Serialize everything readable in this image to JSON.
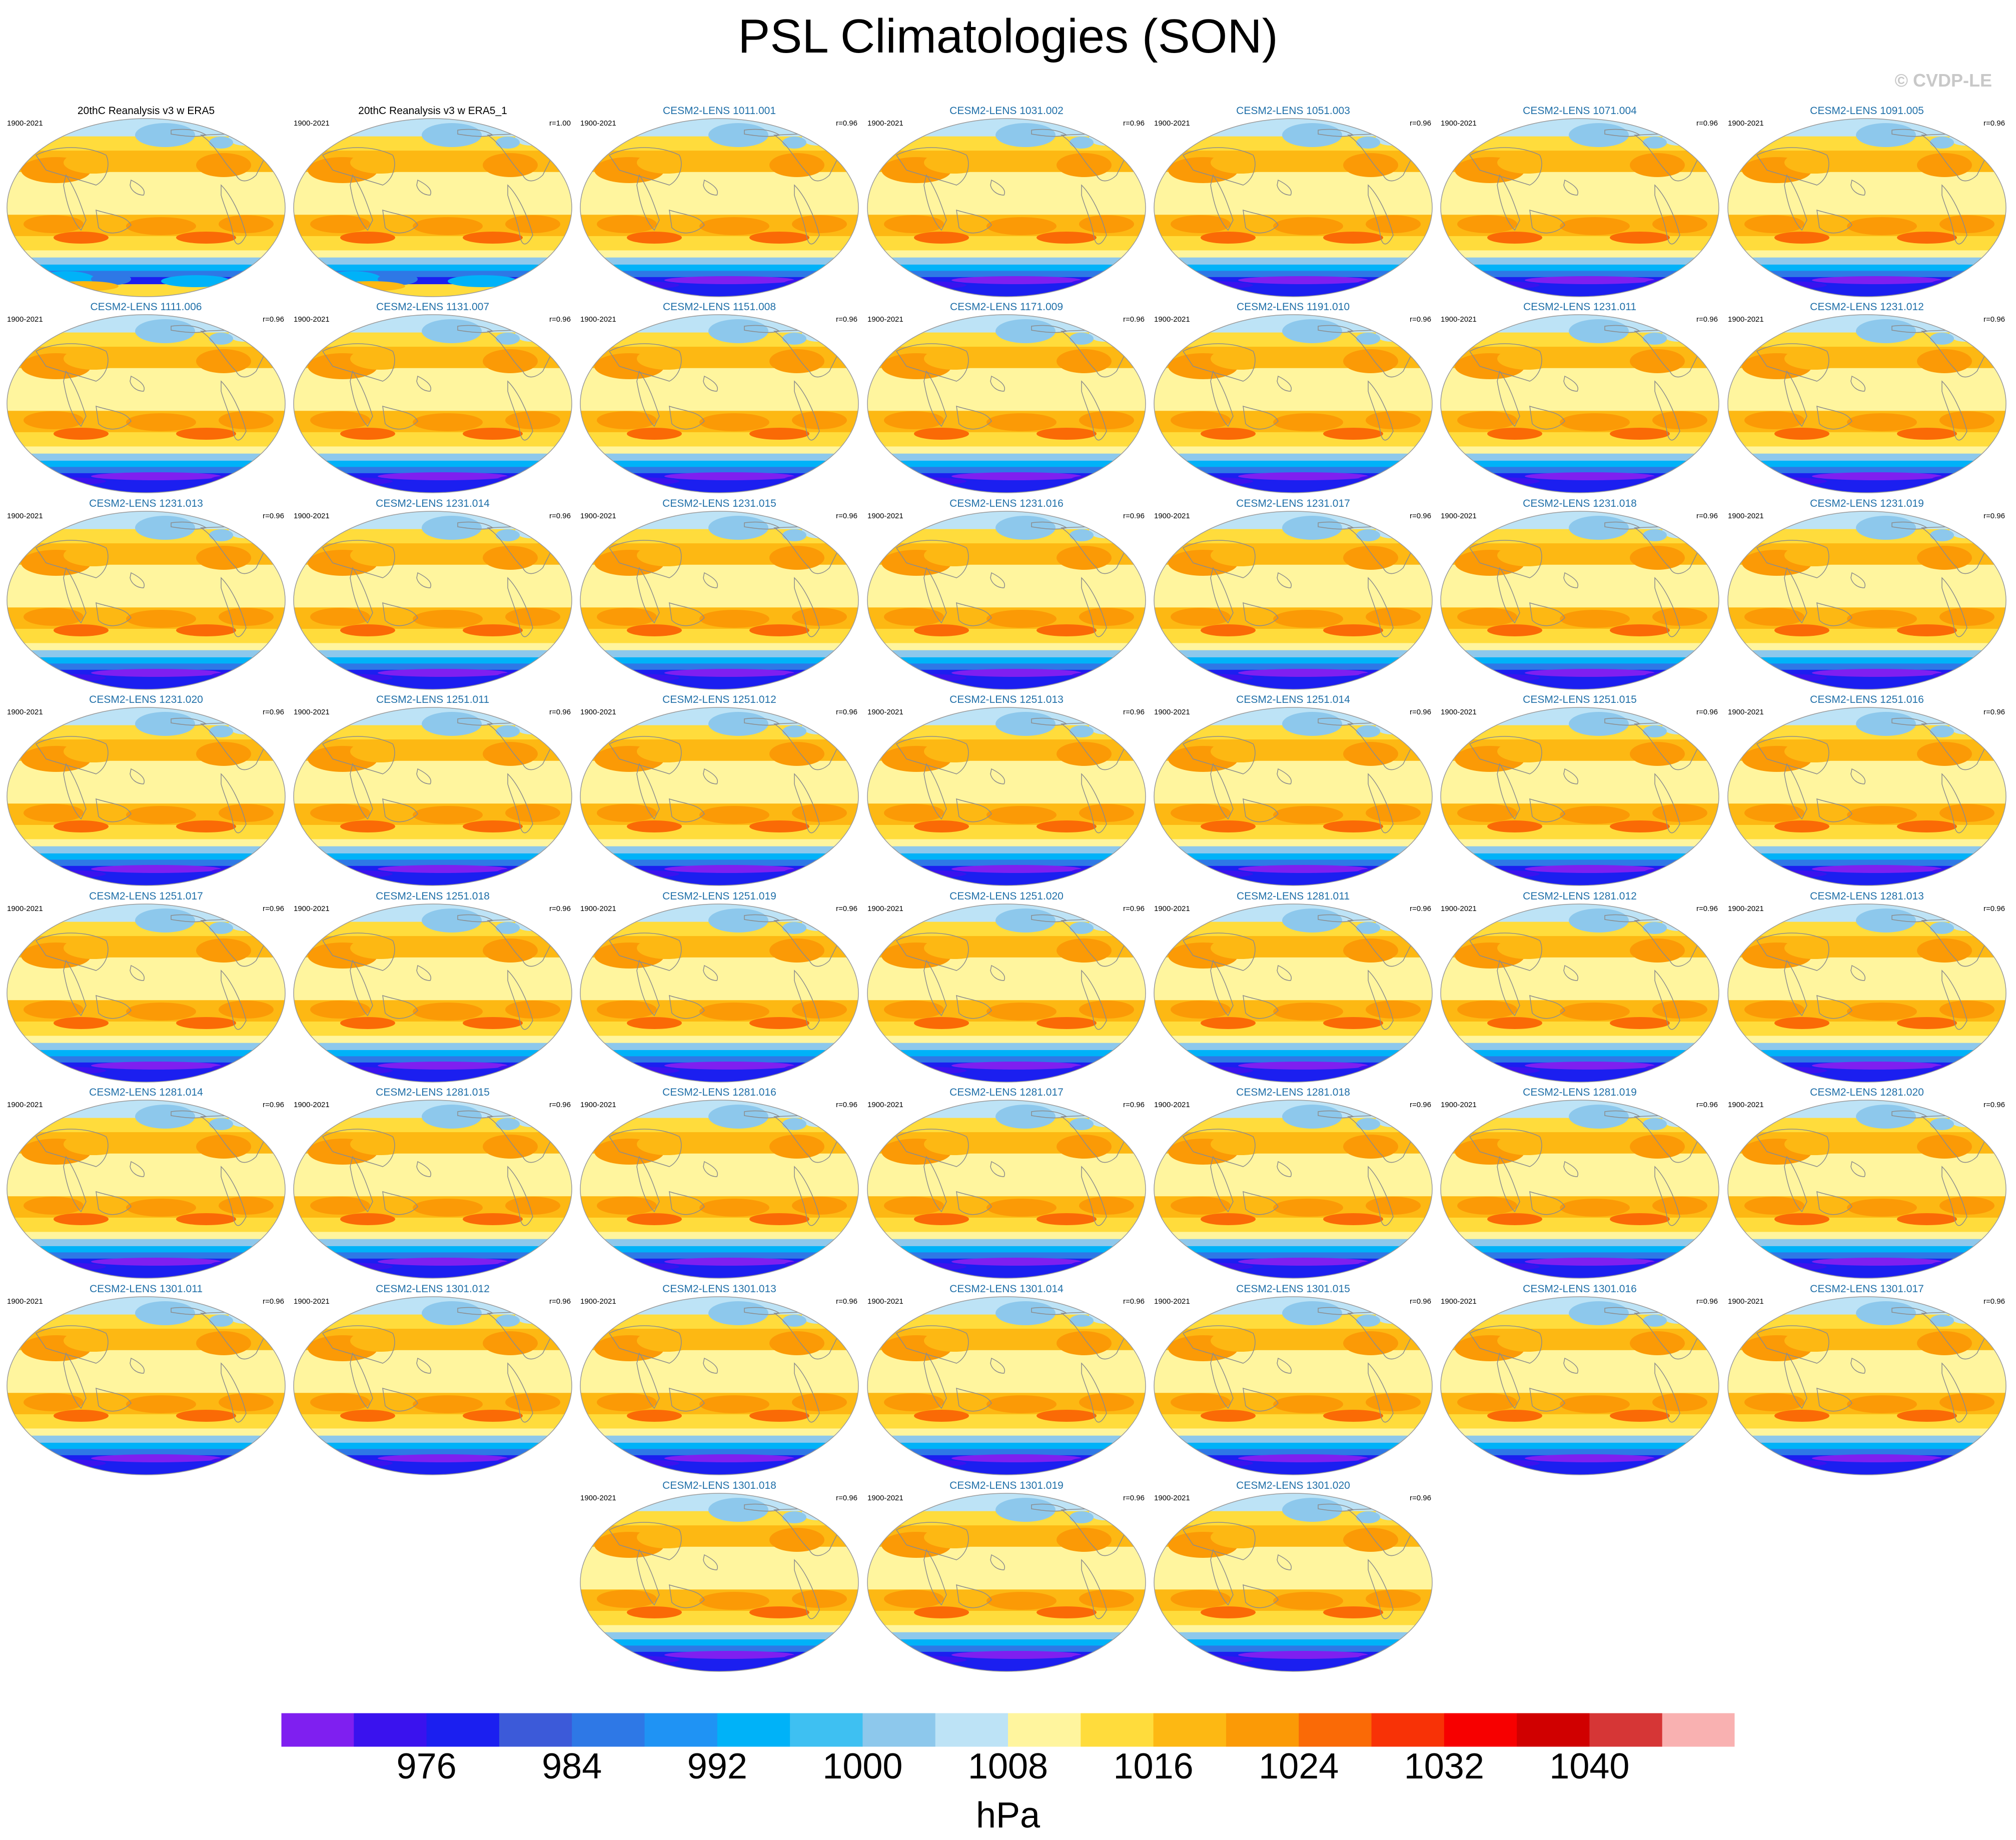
{
  "title": "PSL Climatologies (SON)",
  "credit": "© CVDP-LE",
  "panels": [
    {
      "title": "20thC Reanalysis v3 w ERA5",
      "years": "1900-2021",
      "r": "",
      "type": "obs"
    },
    {
      "title": "20thC Reanalysis v3 w ERA5_1",
      "years": "1900-2021",
      "r": "r=1.00",
      "type": "obs"
    },
    {
      "title": "CESM2-LENS 1011.001",
      "years": "1900-2021",
      "r": "r=0.96",
      "type": "model"
    },
    {
      "title": "CESM2-LENS 1031.002",
      "years": "1900-2021",
      "r": "r=0.96",
      "type": "model"
    },
    {
      "title": "CESM2-LENS 1051.003",
      "years": "1900-2021",
      "r": "r=0.96",
      "type": "model"
    },
    {
      "title": "CESM2-LENS 1071.004",
      "years": "1900-2021",
      "r": "r=0.96",
      "type": "model"
    },
    {
      "title": "CESM2-LENS 1091.005",
      "years": "1900-2021",
      "r": "r=0.96",
      "type": "model"
    },
    {
      "title": "CESM2-LENS 1111.006",
      "years": "1900-2021",
      "r": "r=0.96",
      "type": "model"
    },
    {
      "title": "CESM2-LENS 1131.007",
      "years": "1900-2021",
      "r": "r=0.96",
      "type": "model"
    },
    {
      "title": "CESM2-LENS 1151.008",
      "years": "1900-2021",
      "r": "r=0.96",
      "type": "model"
    },
    {
      "title": "CESM2-LENS 1171.009",
      "years": "1900-2021",
      "r": "r=0.96",
      "type": "model"
    },
    {
      "title": "CESM2-LENS 1191.010",
      "years": "1900-2021",
      "r": "r=0.96",
      "type": "model"
    },
    {
      "title": "CESM2-LENS 1231.011",
      "years": "1900-2021",
      "r": "r=0.96",
      "type": "model"
    },
    {
      "title": "CESM2-LENS 1231.012",
      "years": "1900-2021",
      "r": "r=0.96",
      "type": "model"
    },
    {
      "title": "CESM2-LENS 1231.013",
      "years": "1900-2021",
      "r": "r=0.96",
      "type": "model"
    },
    {
      "title": "CESM2-LENS 1231.014",
      "years": "1900-2021",
      "r": "r=0.96",
      "type": "model"
    },
    {
      "title": "CESM2-LENS 1231.015",
      "years": "1900-2021",
      "r": "r=0.96",
      "type": "model"
    },
    {
      "title": "CESM2-LENS 1231.016",
      "years": "1900-2021",
      "r": "r=0.96",
      "type": "model"
    },
    {
      "title": "CESM2-LENS 1231.017",
      "years": "1900-2021",
      "r": "r=0.96",
      "type": "model"
    },
    {
      "title": "CESM2-LENS 1231.018",
      "years": "1900-2021",
      "r": "r=0.96",
      "type": "model"
    },
    {
      "title": "CESM2-LENS 1231.019",
      "years": "1900-2021",
      "r": "r=0.96",
      "type": "model"
    },
    {
      "title": "CESM2-LENS 1231.020",
      "years": "1900-2021",
      "r": "r=0.96",
      "type": "model"
    },
    {
      "title": "CESM2-LENS 1251.011",
      "years": "1900-2021",
      "r": "r=0.96",
      "type": "model"
    },
    {
      "title": "CESM2-LENS 1251.012",
      "years": "1900-2021",
      "r": "r=0.96",
      "type": "model"
    },
    {
      "title": "CESM2-LENS 1251.013",
      "years": "1900-2021",
      "r": "r=0.96",
      "type": "model"
    },
    {
      "title": "CESM2-LENS 1251.014",
      "years": "1900-2021",
      "r": "r=0.96",
      "type": "model"
    },
    {
      "title": "CESM2-LENS 1251.015",
      "years": "1900-2021",
      "r": "r=0.96",
      "type": "model"
    },
    {
      "title": "CESM2-LENS 1251.016",
      "years": "1900-2021",
      "r": "r=0.96",
      "type": "model"
    },
    {
      "title": "CESM2-LENS 1251.017",
      "years": "1900-2021",
      "r": "r=0.96",
      "type": "model"
    },
    {
      "title": "CESM2-LENS 1251.018",
      "years": "1900-2021",
      "r": "r=0.96",
      "type": "model"
    },
    {
      "title": "CESM2-LENS 1251.019",
      "years": "1900-2021",
      "r": "r=0.96",
      "type": "model"
    },
    {
      "title": "CESM2-LENS 1251.020",
      "years": "1900-2021",
      "r": "r=0.96",
      "type": "model"
    },
    {
      "title": "CESM2-LENS 1281.011",
      "years": "1900-2021",
      "r": "r=0.96",
      "type": "model"
    },
    {
      "title": "CESM2-LENS 1281.012",
      "years": "1900-2021",
      "r": "r=0.96",
      "type": "model"
    },
    {
      "title": "CESM2-LENS 1281.013",
      "years": "1900-2021",
      "r": "r=0.96",
      "type": "model"
    },
    {
      "title": "CESM2-LENS 1281.014",
      "years": "1900-2021",
      "r": "r=0.96",
      "type": "model"
    },
    {
      "title": "CESM2-LENS 1281.015",
      "years": "1900-2021",
      "r": "r=0.96",
      "type": "model"
    },
    {
      "title": "CESM2-LENS 1281.016",
      "years": "1900-2021",
      "r": "r=0.96",
      "type": "model"
    },
    {
      "title": "CESM2-LENS 1281.017",
      "years": "1900-2021",
      "r": "r=0.96",
      "type": "model"
    },
    {
      "title": "CESM2-LENS 1281.018",
      "years": "1900-2021",
      "r": "r=0.96",
      "type": "model"
    },
    {
      "title": "CESM2-LENS 1281.019",
      "years": "1900-2021",
      "r": "r=0.96",
      "type": "model"
    },
    {
      "title": "CESM2-LENS 1281.020",
      "years": "1900-2021",
      "r": "r=0.96",
      "type": "model"
    },
    {
      "title": "CESM2-LENS 1301.011",
      "years": "1900-2021",
      "r": "r=0.96",
      "type": "model"
    },
    {
      "title": "CESM2-LENS 1301.012",
      "years": "1900-2021",
      "r": "r=0.96",
      "type": "model"
    },
    {
      "title": "CESM2-LENS 1301.013",
      "years": "1900-2021",
      "r": "r=0.96",
      "type": "model"
    },
    {
      "title": "CESM2-LENS 1301.014",
      "years": "1900-2021",
      "r": "r=0.96",
      "type": "model"
    },
    {
      "title": "CESM2-LENS 1301.015",
      "years": "1900-2021",
      "r": "r=0.96",
      "type": "model"
    },
    {
      "title": "CESM2-LENS 1301.016",
      "years": "1900-2021",
      "r": "r=0.96",
      "type": "model"
    },
    {
      "title": "CESM2-LENS 1301.017",
      "years": "1900-2021",
      "r": "r=0.96",
      "type": "model"
    },
    {
      "title": "CESM2-LENS 1301.018",
      "years": "1900-2021",
      "r": "r=0.96",
      "type": "model"
    },
    {
      "title": "CESM2-LENS 1301.019",
      "years": "1900-2021",
      "r": "r=0.96",
      "type": "model"
    },
    {
      "title": "CESM2-LENS 1301.020",
      "years": "1900-2021",
      "r": "r=0.96",
      "type": "model"
    }
  ],
  "chart_data": {
    "type": "heatmap",
    "title": "PSL Climatologies (SON)",
    "variable": "PSL",
    "season": "SON",
    "projection": "global map (Robinson)",
    "n_panels": 52,
    "colorbar": {
      "units": "hPa",
      "levels": [
        972,
        976,
        980,
        984,
        988,
        992,
        996,
        1000,
        1004,
        1008,
        1012,
        1016,
        1020,
        1024,
        1028,
        1032,
        1036,
        1040,
        1044
      ],
      "tick_labels": [
        "976",
        "984",
        "992",
        "1000",
        "1008",
        "1016",
        "1024",
        "1032",
        "1040"
      ],
      "colors": [
        "#7f1ff0",
        "#3a12ee",
        "#1b1ff0",
        "#3c5ad9",
        "#2e78e6",
        "#1f93f4",
        "#00b2f8",
        "#3ec0f2",
        "#8dc8ec",
        "#bde3f6",
        "#fff59e",
        "#ffdc3c",
        "#fdb813",
        "#fb9a06",
        "#fa6a06",
        "#f83206",
        "#f70000",
        "#d00000",
        "#d63636",
        "#f9b1b1"
      ]
    }
  }
}
